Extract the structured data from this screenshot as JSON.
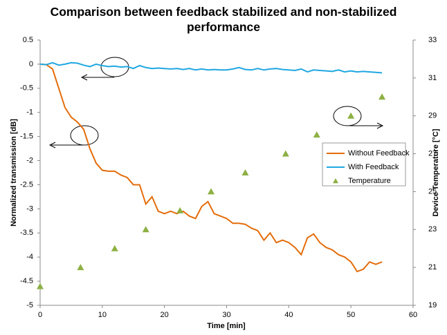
{
  "chart_data": {
    "type": "line",
    "title": "Comparison between feedback stabilized and non-stabilized performance",
    "x_label": "Time [min]",
    "y_label": "Normalized transmission [dB]",
    "y2_label": "Device Temperature [°C]",
    "xlim": [
      0,
      60
    ],
    "xticks": [
      0,
      10,
      20,
      30,
      40,
      50,
      60
    ],
    "ylim": [
      -5,
      0.5
    ],
    "yticks": [
      0.5,
      0,
      -0.5,
      -1,
      -1.5,
      -2,
      -2.5,
      -3,
      -3.5,
      -4,
      -4.5,
      -5
    ],
    "y2lim": [
      19,
      33
    ],
    "y2ticks": [
      19,
      21,
      23,
      25,
      27,
      29,
      31,
      33
    ],
    "series": [
      {
        "name": "Without Feedback",
        "color": "#e46c0a",
        "x": [
          0,
          1,
          2,
          3,
          4,
          5,
          6,
          7,
          8,
          9,
          10,
          11,
          12,
          13,
          14,
          15,
          16,
          17,
          18,
          19,
          20,
          21,
          22,
          23,
          24,
          25,
          26,
          27,
          28,
          29,
          30,
          31,
          32,
          33,
          34,
          35,
          36,
          37,
          38,
          39,
          40,
          41,
          42,
          43,
          44,
          45,
          46,
          47,
          48,
          49,
          50,
          51,
          52,
          53,
          54,
          55
        ],
        "values": [
          0,
          -0.01,
          -0.1,
          -0.5,
          -0.9,
          -1.1,
          -1.2,
          -1.35,
          -1.75,
          -2.05,
          -2.2,
          -2.22,
          -2.22,
          -2.3,
          -2.35,
          -2.5,
          -2.5,
          -2.9,
          -2.75,
          -3.05,
          -3.1,
          -3.05,
          -3.1,
          -3.05,
          -3.15,
          -3.2,
          -2.95,
          -2.85,
          -3.1,
          -3.15,
          -3.2,
          -3.3,
          -3.3,
          -3.32,
          -3.4,
          -3.45,
          -3.65,
          -3.5,
          -3.7,
          -3.65,
          -3.7,
          -3.8,
          -3.95,
          -3.6,
          -3.52,
          -3.7,
          -3.8,
          -3.85,
          -3.95,
          -4.0,
          -4.1,
          -4.3,
          -4.25,
          -4.1,
          -4.15,
          -4.1
        ]
      },
      {
        "name": "With Feedback",
        "color": "#1fa7e1",
        "x": [
          0,
          1,
          2,
          3,
          4,
          5,
          6,
          7,
          8,
          9,
          10,
          11,
          12,
          13,
          14,
          15,
          16,
          17,
          18,
          19,
          20,
          21,
          22,
          23,
          24,
          25,
          26,
          27,
          28,
          29,
          30,
          31,
          32,
          33,
          34,
          35,
          36,
          37,
          38,
          39,
          40,
          41,
          42,
          43,
          44,
          45,
          46,
          47,
          48,
          49,
          50,
          51,
          52,
          53,
          54,
          55
        ],
        "values": [
          0,
          -0.01,
          0.03,
          -0.02,
          0,
          0.03,
          0.02,
          -0.02,
          -0.05,
          0,
          -0.03,
          -0.05,
          -0.04,
          -0.06,
          -0.05,
          -0.09,
          -0.03,
          -0.07,
          -0.09,
          -0.08,
          -0.09,
          -0.1,
          -0.09,
          -0.11,
          -0.09,
          -0.12,
          -0.1,
          -0.12,
          -0.11,
          -0.12,
          -0.12,
          -0.1,
          -0.07,
          -0.11,
          -0.12,
          -0.09,
          -0.12,
          -0.1,
          -0.09,
          -0.11,
          -0.12,
          -0.13,
          -0.1,
          -0.16,
          -0.12,
          -0.13,
          -0.14,
          -0.15,
          -0.12,
          -0.16,
          -0.14,
          -0.16,
          -0.15,
          -0.16,
          -0.17,
          -0.18
        ]
      },
      {
        "name": "Temperature",
        "color": "#8db043",
        "type": "scatter",
        "axis": "y2",
        "x": [
          0,
          6.5,
          12,
          17,
          22.5,
          27.5,
          33,
          39.5,
          44.5,
          50,
          55
        ],
        "values": [
          20,
          21,
          22,
          23,
          24,
          25,
          26,
          27,
          28,
          29,
          30
        ]
      }
    ]
  }
}
